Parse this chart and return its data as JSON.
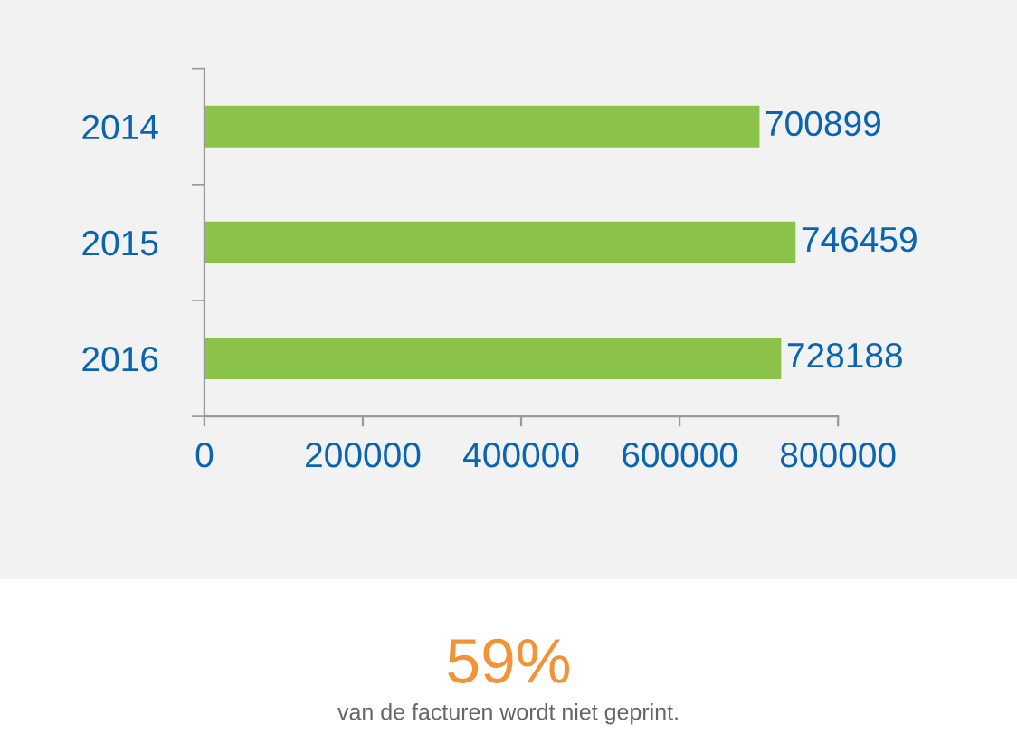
{
  "chart_data": {
    "type": "bar",
    "orientation": "horizontal",
    "categories": [
      "2014",
      "2015",
      "2016"
    ],
    "values": [
      700899,
      746459,
      728188
    ],
    "color": "#8bc34a",
    "xlim": [
      0,
      800000
    ],
    "xticks": [
      0,
      200000,
      400000,
      600000,
      800000
    ],
    "data_labels": true,
    "grid": false,
    "legend": false,
    "annotations": [
      "59%",
      "van de facturen wordt niet geprint."
    ]
  }
}
